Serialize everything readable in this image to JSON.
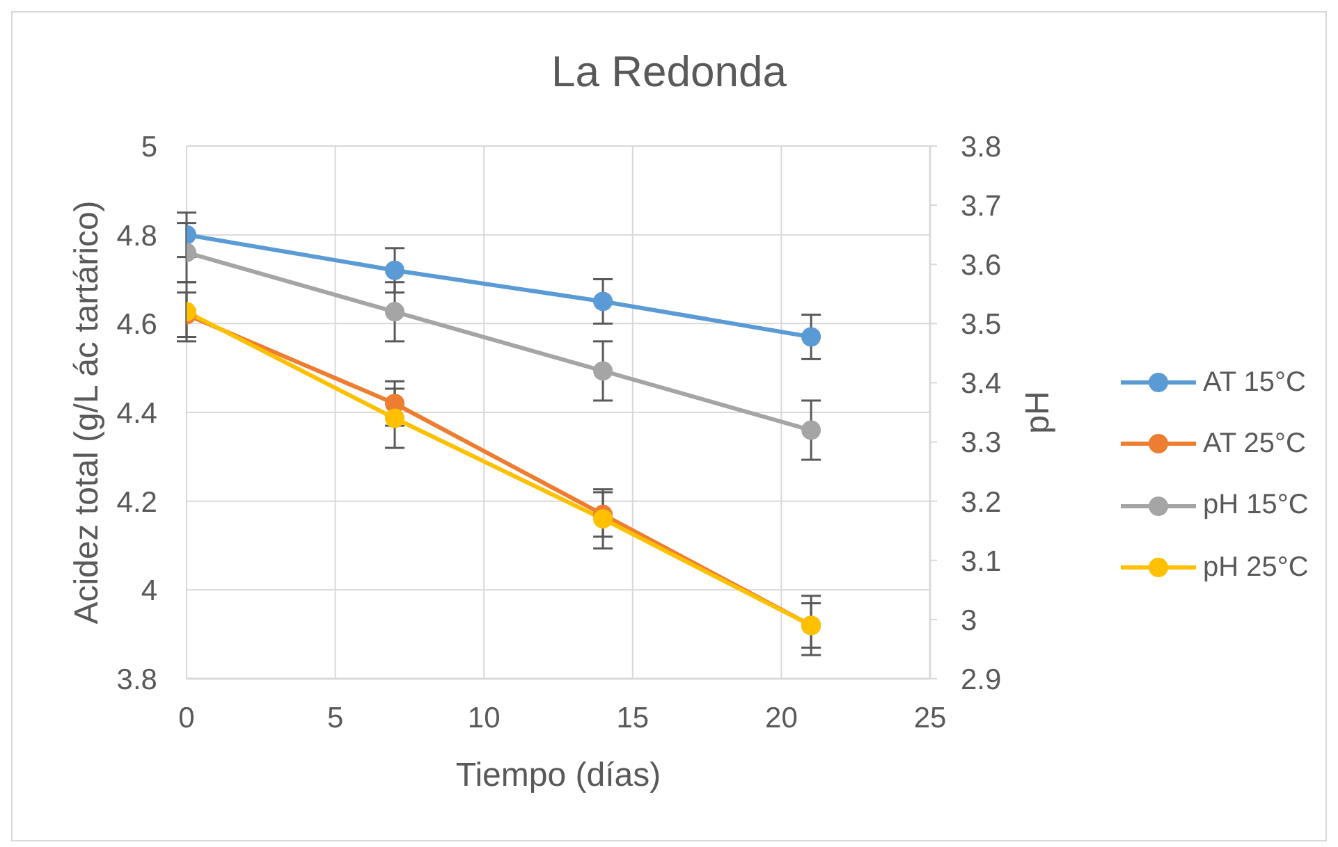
{
  "chart_data": {
    "type": "line",
    "title": "La Redonda",
    "xlabel": "Tiempo (días)",
    "ylabel": "Acidez total (g/L ác tartárico)",
    "y2label": "pH",
    "x": [
      0,
      7,
      14,
      21
    ],
    "xlim": [
      0,
      25
    ],
    "xticks": [
      0,
      5,
      10,
      15,
      20,
      25
    ],
    "ylim": [
      3.8,
      5
    ],
    "yticks": [
      3.8,
      4,
      4.2,
      4.4,
      4.6,
      4.8,
      5
    ],
    "y2lim": [
      2.9,
      3.8
    ],
    "y2ticks": [
      2.9,
      3,
      3.1,
      3.2,
      3.3,
      3.4,
      3.5,
      3.6,
      3.7,
      3.8
    ],
    "series": [
      {
        "name": "AT 15°C",
        "color": "#5b9bd5",
        "values": [
          4.8,
          4.72,
          4.65,
          4.57
        ],
        "errors": [
          0.05,
          0.05,
          0.05,
          0.05
        ]
      },
      {
        "name": "AT 25°C",
        "color": "#ed7d31",
        "values": [
          4.62,
          4.42,
          4.17,
          3.92
        ],
        "errors": [
          0.05,
          0.05,
          0.05,
          0.05
        ]
      },
      {
        "name": "pH 15°C",
        "color": "#a5a5a5",
        "axis": "y2",
        "values": [
          3.62,
          3.52,
          3.42,
          3.32
        ],
        "errors": [
          0.05,
          0.05,
          0.05,
          0.05
        ]
      },
      {
        "name": "pH 25°C",
        "color": "#ffc000",
        "axis": "y2",
        "values": [
          3.52,
          3.34,
          3.17,
          2.99
        ],
        "errors": [
          0.05,
          0.05,
          0.05,
          0.05
        ]
      }
    ],
    "grid": true,
    "legend": "right",
    "marker": "circle"
  }
}
